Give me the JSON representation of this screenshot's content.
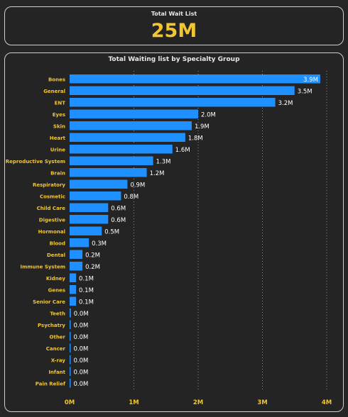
{
  "kpi": {
    "label": "Total Wait List",
    "value": "25M"
  },
  "chart_data": {
    "type": "bar",
    "orientation": "horizontal",
    "title": "Total Waiting list by Specialty Group",
    "categories": [
      "Bones",
      "General",
      "ENT",
      "Eyes",
      "Skin",
      "Heart",
      "Urine",
      "Reproductive System",
      "Brain",
      "Respiratory",
      "Cosmetic",
      "Child Care",
      "Digestive",
      "Hormonal",
      "Blood",
      "Dental",
      "Immune System",
      "Kidney",
      "Genes",
      "Senior Care",
      "Teeth",
      "Psychatry",
      "Other",
      "Cancer",
      "X-ray",
      "Infant",
      "Pain Relief"
    ],
    "values": [
      3.9,
      3.5,
      3.2,
      2.0,
      1.9,
      1.8,
      1.6,
      1.3,
      1.2,
      0.9,
      0.8,
      0.6,
      0.6,
      0.5,
      0.3,
      0.2,
      0.2,
      0.1,
      0.1,
      0.1,
      0.02,
      0.01,
      0.01,
      0.01,
      0.01,
      0.005,
      0.005
    ],
    "data_labels": [
      "3.9M",
      "3.5M",
      "3.2M",
      "2.0M",
      "1.9M",
      "1.8M",
      "1.6M",
      "1.3M",
      "1.2M",
      "0.9M",
      "0.8M",
      "0.6M",
      "0.6M",
      "0.5M",
      "0.3M",
      "0.2M",
      "0.2M",
      "0.1M",
      "0.1M",
      "0.1M",
      "0.0M",
      "0.0M",
      "0.0M",
      "0.0M",
      "0.0M",
      "0.0M",
      "0.0M"
    ],
    "xticks": [
      0,
      1,
      2,
      3,
      4
    ],
    "xtick_labels": [
      "0M",
      "1M",
      "2M",
      "3M",
      "4M"
    ],
    "xlim": [
      0,
      4
    ],
    "grid": "vertical dotted",
    "colors": {
      "bar": "#1e90ff",
      "category_label": "#f2c531",
      "tick_label": "#f2c531",
      "data_label": "#ffffff",
      "grid": "#8a8a8a"
    }
  }
}
